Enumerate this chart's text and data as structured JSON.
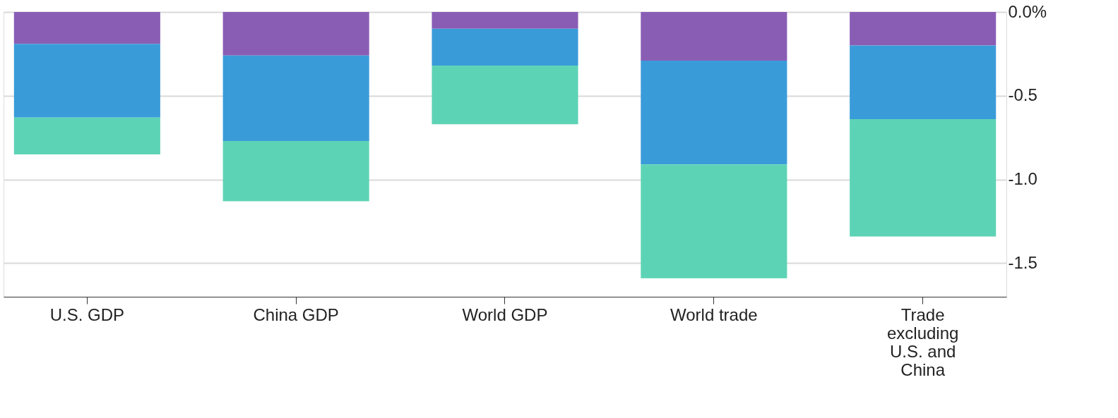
{
  "chart_data": {
    "type": "bar",
    "stacked": true,
    "categories": [
      "U.S. GDP",
      "China GDP",
      "World GDP",
      "World trade",
      "Trade excluding U.S. and China"
    ],
    "series": [
      {
        "color": "#8a5db5",
        "values": [
          -0.19,
          -0.26,
          -0.1,
          -0.29,
          -0.2
        ]
      },
      {
        "color": "#3a9bd9",
        "values": [
          -0.44,
          -0.51,
          -0.22,
          -0.62,
          -0.44
        ]
      },
      {
        "color": "#5dd3b6",
        "values": [
          -0.22,
          -0.36,
          -0.35,
          -0.68,
          -0.7
        ]
      }
    ],
    "ylim": [
      -1.7,
      0
    ],
    "yticks": [
      {
        "value": 0,
        "label": "0.0%"
      },
      {
        "value": -0.5,
        "label": "-0.5"
      },
      {
        "value": -1.0,
        "label": "-1.0"
      },
      {
        "value": -1.5,
        "label": "-1.5"
      }
    ],
    "grid": "y",
    "legend": false
  }
}
